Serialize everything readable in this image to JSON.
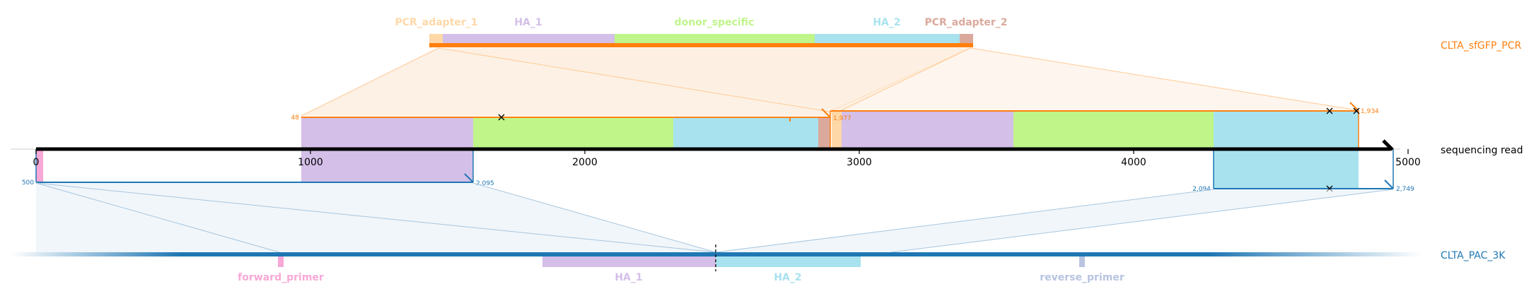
{
  "colors": {
    "pcr_line": "#ff7f0e",
    "pac_line": "#1f77b4",
    "read_line": "#000000",
    "pcr_adapter_1": "#ffd8a8",
    "ha_1": "#d4bfe8",
    "donor_specific": "#c0f58a",
    "ha_2": "#a8e2ee",
    "pcr_adapter_2": "#dba99c",
    "forward_primer": "#f7a8d6",
    "reverse_primer": "#b8c4e0"
  },
  "top_track": {
    "name": "CLTA_sfGFP_PCR",
    "features": [
      {
        "label": "PCR_adapter_1",
        "color_key": "pcr_adapter_1"
      },
      {
        "label": "HA_1",
        "color_key": "ha_1"
      },
      {
        "label": "donor_specific",
        "color_key": "donor_specific"
      },
      {
        "label": "HA_2",
        "color_key": "ha_2"
      },
      {
        "label": "PCR_adapter_2",
        "color_key": "pcr_adapter_2"
      }
    ]
  },
  "read_track": {
    "name": "sequencing read",
    "ticks": [
      "0",
      "1000",
      "2000",
      "3000",
      "4000",
      "5000"
    ]
  },
  "bottom_track": {
    "name": "CLTA_PAC_3K",
    "features": [
      {
        "label": "forward_primer",
        "color_key": "forward_primer"
      },
      {
        "label": "HA_1",
        "color_key": "ha_1"
      },
      {
        "label": "HA_2",
        "color_key": "ha_2"
      },
      {
        "label": "reverse_primer",
        "color_key": "reverse_primer"
      }
    ]
  },
  "alignment_labels": {
    "top_1_start": "48",
    "top_1_end": "1,977",
    "top_2_end": "1,934",
    "bottom_1_start": "500",
    "bottom_1_end": "2,095",
    "bottom_2_start": "2,094",
    "bottom_2_end": "2,749"
  }
}
